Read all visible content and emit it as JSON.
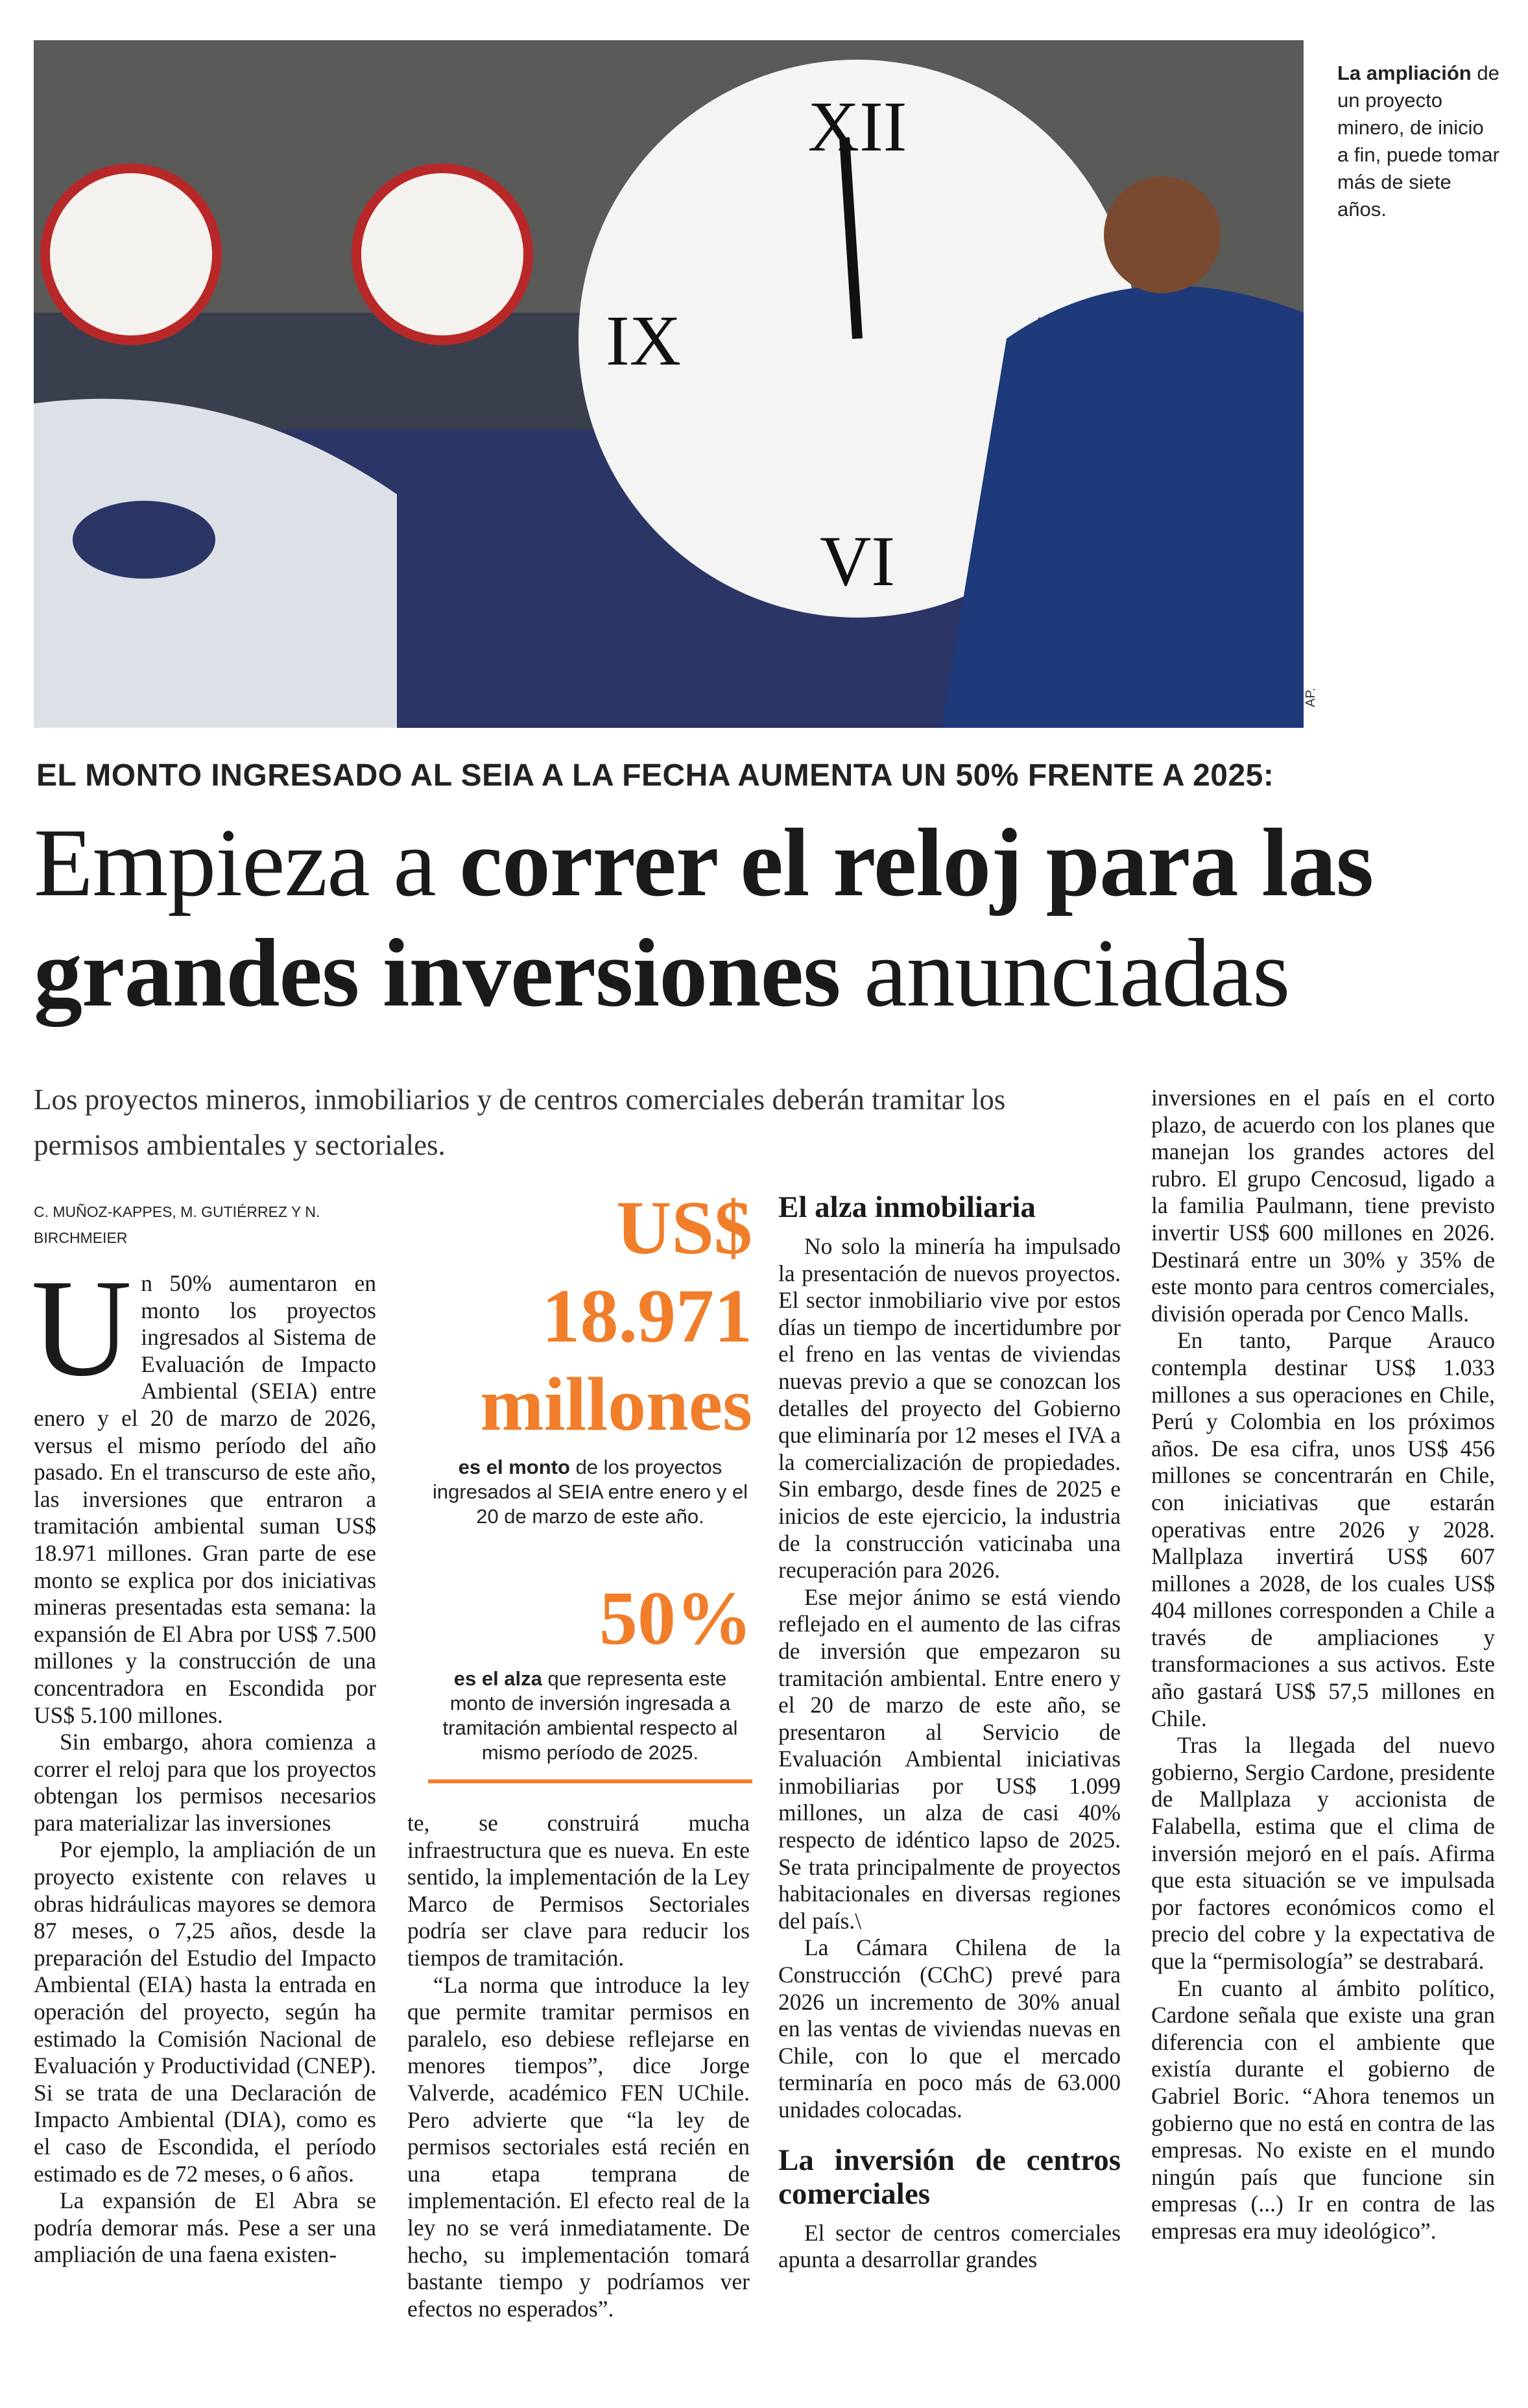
{
  "photo": {
    "caption_bold": "La ampliación",
    "caption_rest": "de un proyecto minero, de inicio a fin, puede tomar más de siete años.",
    "credit": "AP."
  },
  "kicker": "EL MONTO INGRESADO AL SEIA A LA FECHA AUMENTA UN 50% FRENTE A 2025:",
  "headline": {
    "part1": "Empieza a ",
    "part2": "correr el reloj para las grandes inversiones",
    "part3": " anunciadas"
  },
  "deck": "Los proyectos mineros, inmobiliarios y de centros comerciales deberán tramitar los permisos ambientales y sectoriales.",
  "byline": "C. MUÑOZ-KAPPES, M. GUTIÉRREZ Y N. BIRCHMEIER",
  "highlights": [
    {
      "figure": "US$ 18.971 millones",
      "note_bold": "es el monto",
      "note_rest": " de los proyectos ingresados al SEIA entre enero y el 20 de marzo de este año."
    },
    {
      "figure": "50%",
      "note_bold": "es el alza",
      "note_rest": " que representa este monto de inversión ingresada a tramitación ambiental respecto al mismo período de 2025."
    }
  ],
  "accent_color": "#f07e2a",
  "body": {
    "drop_cap": "U",
    "col1": [
      "n 50% aumentaron en monto los proyectos ingresados al Sistema de Evaluación de Impacto Ambiental (SEIA) entre enero y el 20 de marzo de 2026, versus el mismo período del año pasado. En el transcurso de este año, las inversiones que entraron a tramitación ambiental suman US$ 18.971 millones. Gran parte de ese monto se explica por dos iniciativas mineras presentadas esta semana: la expansión de El Abra por US$ 7.500 millones y la construcción de una concentradora en Escondida por US$ 5.100 millones.",
      "Sin embargo, ahora comienza a correr el reloj para que los proyectos obtengan los permisos necesarios para materializar las inversiones",
      "Por ejemplo, la ampliación de un proyecto existente con relaves u obras hidráulicas mayores se demora 87 meses, o 7,25 años, desde la preparación del Estudio del Impacto Ambiental (EIA) hasta la entrada en operación del proyecto, según ha estimado la Comisión Nacional de Evaluación y Productividad (CNEP). Si se trata de una Declaración de Impacto Ambiental (DIA), como es el caso de Escondida, el período estimado es de 72 meses, o 6 años.",
      "La expansión de El Abra se podría demorar más. Pese a ser una ampliación de una faena existen-"
    ],
    "col2": [
      "te, se construirá mucha infraestructura que es nueva. En este sentido, la implementación de la Ley Marco de Permisos Sectoriales podría ser clave para reducir los tiempos de tramitación.",
      "“La norma que introduce la ley que permite tramitar permisos en paralelo, eso debiese reflejarse en menores tiempos”, dice Jorge Valverde, académico FEN UChile. Pero advierte que “la ley de permisos sectoriales está recién en una etapa temprana de implementación. El efecto real de la ley no se verá inmediatamente. De hecho, su implementación tomará bastante tiempo y podríamos ver efectos no esperados”."
    ],
    "col3_heading": "El alza inmobiliaria",
    "col3": [
      "No solo la minería ha impulsado la presentación de nuevos proyectos. El sector inmobiliario vive por estos días un tiempo de incertidumbre por el freno en las ventas de viviendas nuevas previo a que se conozcan los detalles del proyecto del Gobierno que eliminaría por 12 meses el IVA a la comercialización de propiedades. Sin embargo, desde fines de 2025 e inicios de este ejercicio, la industria de la construcción vaticinaba una recuperación para 2026.",
      "Ese mejor ánimo se está viendo reflejado en el aumento de las cifras de inversión que empezaron su tramitación ambiental. Entre enero y el 20 de marzo de este año, se presentaron al Servicio de Evaluación Ambiental iniciativas inmobiliarias por US$ 1.099 millones, un alza de casi 40% respecto de idéntico lapso de 2025. Se trata principalmente de proyectos habitacionales en diversas regiones del país.\\",
      "La Cámara Chilena de la Construcción (CChC) prevé para 2026 un incremento de 30% anual en las ventas de viviendas nuevas en Chile, con lo que el mercado terminaría en poco más de 63.000 unidades colocadas."
    ],
    "col3_heading2": "La inversión de centros comerciales",
    "col3b": [
      "El sector de centros comerciales apunta a desarrollar grandes"
    ],
    "col4": [
      "inversiones en el país en el corto plazo, de acuerdo con los planes que manejan los grandes actores del rubro. El grupo Cencosud, ligado a la familia Paulmann, tiene previsto invertir US$ 600 millones en 2026. Destinará entre un 30% y 35% de este monto para centros comerciales, división operada por Cenco Malls.",
      "En tanto, Parque Arauco contempla destinar US$ 1.033 millones a sus operaciones en Chile, Perú y Colombia en los próximos años. De esa cifra, unos US$ 456 millones se concentrarán en Chile, con iniciativas que estarán operativas entre 2026 y 2028. Mallplaza invertirá US$ 607 millones a 2028, de los cuales US$ 404 millones corresponden a Chile a través de ampliaciones y transformaciones a sus activos. Este año gastará US$ 57,5 millones en Chile.",
      "Tras la llegada del nuevo gobierno, Sergio Cardone, presidente de Mallplaza y accionista de Falabella, estima que el clima de inversión mejoró en el país. Afirma que esta situación se ve impulsada por factores económicos como el precio del cobre y la expectativa de que la “permisología” se destrabará.",
      "En cuanto al ámbito político, Cardone señala que existe una gran diferencia con el ambiente que existía durante el gobierno de Gabriel Boric. “Ahora tenemos un gobierno que no está en contra de las empresas. No existe en el mundo ningún país que funcione sin empresas (...) Ir en contra de las empresas era muy ideológico”."
    ]
  }
}
